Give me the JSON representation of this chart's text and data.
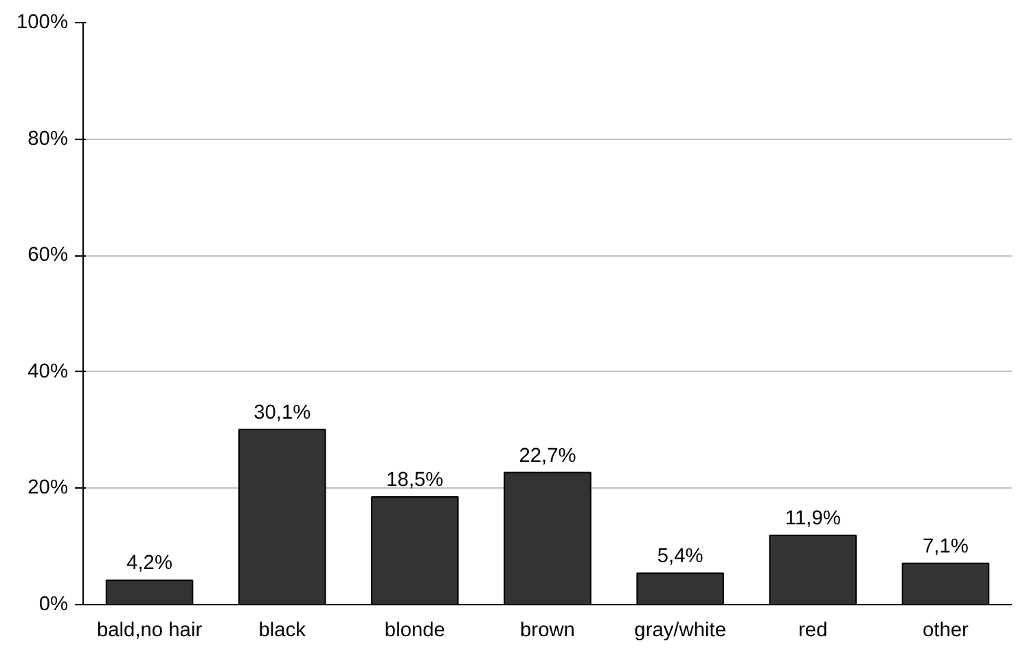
{
  "chart_data": {
    "type": "bar",
    "categories": [
      "bald,no hair",
      "black",
      "blonde",
      "brown",
      "gray/white",
      "red",
      "other"
    ],
    "values": [
      4.2,
      30.1,
      18.5,
      22.7,
      5.4,
      11.9,
      7.1
    ],
    "value_labels": [
      "4,2%",
      "30,1%",
      "18,5%",
      "22,7%",
      "5,4%",
      "11,9%",
      "7,1%"
    ],
    "color": "#333333",
    "ylim": [
      0,
      100
    ],
    "yticks": [
      {
        "value": 0,
        "label": "0%"
      },
      {
        "value": 20,
        "label": "20%"
      },
      {
        "value": 40,
        "label": "40%"
      },
      {
        "value": 60,
        "label": "60%"
      },
      {
        "value": 80,
        "label": "80%"
      },
      {
        "value": 100,
        "label": "100%"
      }
    ],
    "grid": "y"
  }
}
